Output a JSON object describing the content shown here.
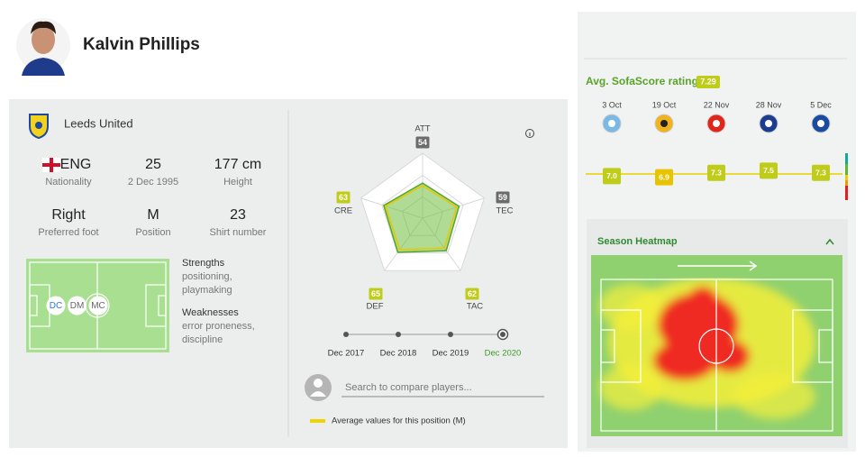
{
  "header": {
    "player_name": "Kalvin Phillips"
  },
  "profile": {
    "team": "Leeds United",
    "details": [
      {
        "value": "ENG",
        "label": "Nationality"
      },
      {
        "value": "25",
        "label": "2 Dec 1995"
      },
      {
        "value": "177 cm",
        "label": "Height"
      },
      {
        "value": "Right",
        "label": "Preferred foot"
      },
      {
        "value": "M",
        "label": "Position"
      },
      {
        "value": "23",
        "label": "Shirt number"
      }
    ],
    "positions": [
      "DC",
      "DM",
      "MC"
    ],
    "strengths": {
      "title": "Strengths",
      "items": [
        "positioning,",
        "playmaking"
      ]
    },
    "weaknesses": {
      "title": "Weaknesses",
      "items": [
        "error proneness,",
        "discipline"
      ]
    }
  },
  "attributes": {
    "labels": [
      "ATT",
      "TEC",
      "TAC",
      "DEF",
      "CRE"
    ],
    "values": [
      54,
      59,
      62,
      65,
      63
    ],
    "colors": [
      "#6b6b6b",
      "#6b6b6b",
      "#bfcc1a",
      "#bfcc1a",
      "#bfcc1a"
    ],
    "average_values": [
      50,
      55,
      57,
      60,
      60
    ],
    "timeline": [
      "Dec 2017",
      "Dec 2018",
      "Dec 2019",
      "Dec 2020"
    ],
    "selected_index": 3,
    "search_placeholder": "Search to compare players...",
    "legend_label": "Average values for this position (M)"
  },
  "rating": {
    "title": "Avg. SofaScore rating",
    "average": 7.29,
    "dates": [
      "3 Oct",
      "19 Oct",
      "22 Nov",
      "28 Nov",
      "5 Dec"
    ],
    "ratings": [
      {
        "value": 7.0,
        "label": "7.0"
      },
      6.9,
      7.3,
      7.5,
      7.3
    ]
  },
  "heatmap": {
    "title": "Season Heatmap"
  }
}
